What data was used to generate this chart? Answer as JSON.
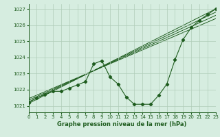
{
  "title": "Graphe pression niveau de la mer (hPa)",
  "xlim": [
    0,
    23
  ],
  "ylim": [
    1020.6,
    1027.3
  ],
  "yticks": [
    1021,
    1022,
    1023,
    1024,
    1025,
    1026,
    1027
  ],
  "xticks": [
    0,
    1,
    2,
    3,
    4,
    5,
    6,
    7,
    8,
    9,
    10,
    11,
    12,
    13,
    14,
    15,
    16,
    17,
    18,
    19,
    20,
    21,
    22,
    23
  ],
  "bg_color": "#d6ede0",
  "grid_color": "#b0ccb8",
  "line_color": "#1e5c1e",
  "series1_x": [
    0,
    1,
    2,
    3,
    4,
    5,
    6,
    7,
    8,
    9,
    10,
    11,
    12,
    13,
    14,
    15,
    16,
    17,
    18,
    19,
    20,
    21,
    22,
    23
  ],
  "series1_y": [
    1021.2,
    1021.5,
    1021.7,
    1021.9,
    1021.9,
    1022.1,
    1022.3,
    1022.5,
    1023.6,
    1023.8,
    1022.8,
    1022.35,
    1021.55,
    1021.1,
    1021.1,
    1021.1,
    1021.65,
    1022.35,
    1023.85,
    1025.1,
    1025.85,
    1026.3,
    1026.65,
    1027.0
  ],
  "trend_lines": [
    {
      "x": [
        0,
        23
      ],
      "y": [
        1021.15,
        1027.0
      ]
    },
    {
      "x": [
        0,
        23
      ],
      "y": [
        1021.25,
        1026.8
      ]
    },
    {
      "x": [
        0,
        23
      ],
      "y": [
        1021.35,
        1026.6
      ]
    },
    {
      "x": [
        0,
        23
      ],
      "y": [
        1021.45,
        1026.4
      ]
    }
  ]
}
